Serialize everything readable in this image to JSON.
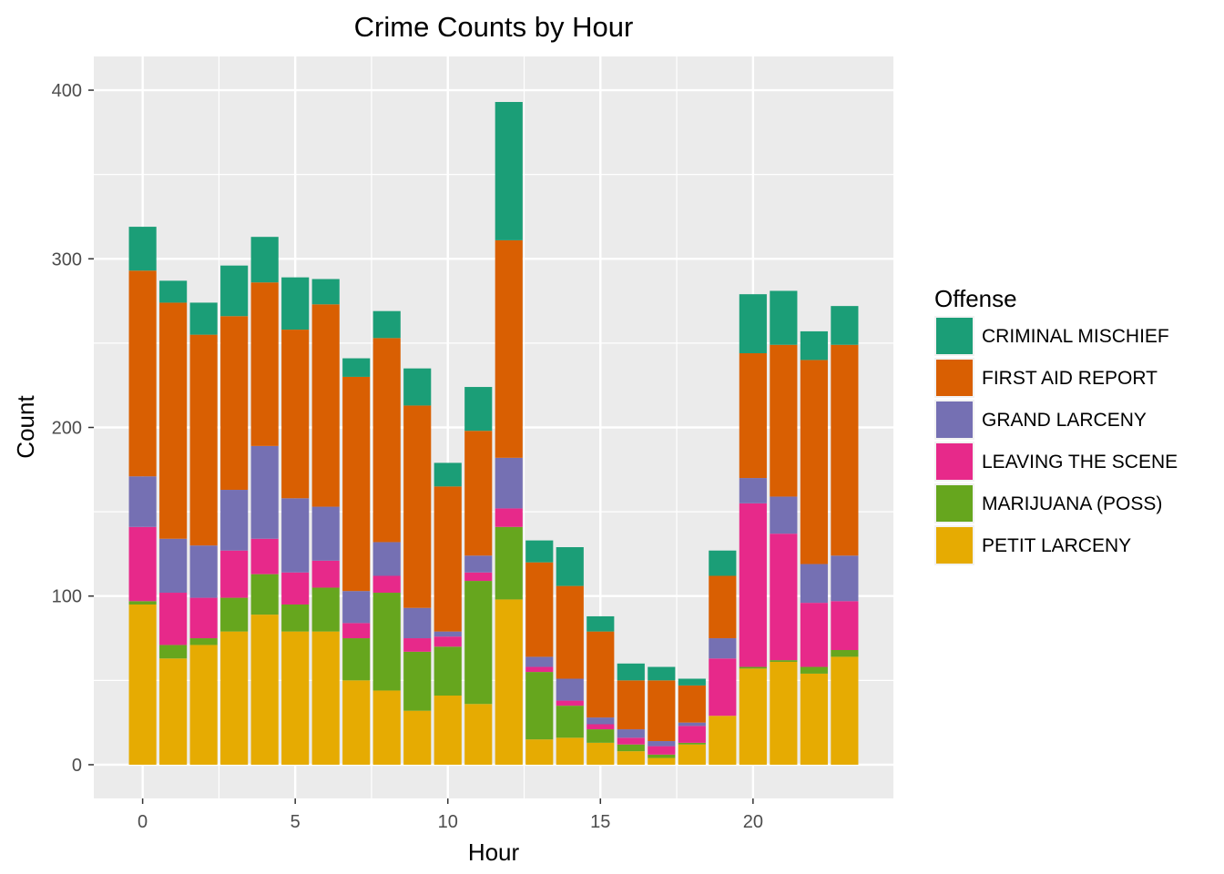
{
  "chart_data": {
    "type": "bar",
    "stacked": true,
    "title": "Crime Counts by Hour",
    "xlabel": "Hour",
    "ylabel": "Count",
    "x": [
      0,
      1,
      2,
      3,
      4,
      5,
      6,
      7,
      8,
      9,
      10,
      11,
      12,
      13,
      14,
      15,
      16,
      17,
      18,
      19,
      20,
      21,
      22,
      23
    ],
    "xticks": [
      0,
      5,
      10,
      15,
      20
    ],
    "yticks": [
      0,
      100,
      200,
      300,
      400
    ],
    "xlim": [
      -1.6,
      24.6
    ],
    "ylim": [
      -20,
      420
    ],
    "grid": true,
    "legend_title": "Offense",
    "legend_position": "right",
    "stack_order": [
      "PETIT LARCENY",
      "MARIJUANA (POSS)",
      "LEAVING THE SCENE",
      "GRAND LARCENY",
      "FIRST AID REPORT",
      "CRIMINAL MISCHIEF"
    ],
    "series": [
      {
        "name": "CRIMINAL MISCHIEF",
        "color": "#1b9e77",
        "values": [
          26,
          13,
          19,
          30,
          27,
          31,
          15,
          11,
          16,
          22,
          14,
          26,
          82,
          13,
          23,
          9,
          10,
          8,
          4,
          15,
          35,
          32,
          17,
          23
        ]
      },
      {
        "name": "FIRST AID REPORT",
        "color": "#d95f02",
        "values": [
          122,
          140,
          125,
          103,
          97,
          100,
          120,
          127,
          121,
          120,
          86,
          74,
          129,
          56,
          55,
          51,
          29,
          36,
          22,
          37,
          74,
          90,
          121,
          125
        ]
      },
      {
        "name": "GRAND LARCENY",
        "color": "#7570b3",
        "values": [
          30,
          32,
          31,
          36,
          55,
          44,
          32,
          19,
          20,
          18,
          3,
          10,
          30,
          6,
          13,
          4,
          5,
          3,
          2,
          12,
          15,
          22,
          23,
          27
        ]
      },
      {
        "name": "LEAVING THE SCENE",
        "color": "#e7298a",
        "values": [
          44,
          31,
          24,
          28,
          21,
          19,
          16,
          9,
          10,
          8,
          6,
          5,
          11,
          3,
          3,
          3,
          4,
          5,
          10,
          34,
          97,
          75,
          38,
          29
        ]
      },
      {
        "name": "MARIJUANA (POSS)",
        "color": "#66a61e",
        "values": [
          2,
          8,
          4,
          20,
          24,
          16,
          26,
          25,
          58,
          35,
          29,
          73,
          43,
          40,
          19,
          8,
          4,
          2,
          1,
          0,
          1,
          1,
          4,
          4
        ]
      },
      {
        "name": "PETIT LARCENY",
        "color": "#e6ab02",
        "values": [
          95,
          63,
          71,
          79,
          89,
          79,
          79,
          50,
          44,
          32,
          41,
          36,
          98,
          15,
          16,
          13,
          8,
          4,
          12,
          29,
          57,
          61,
          54,
          64
        ]
      }
    ]
  }
}
